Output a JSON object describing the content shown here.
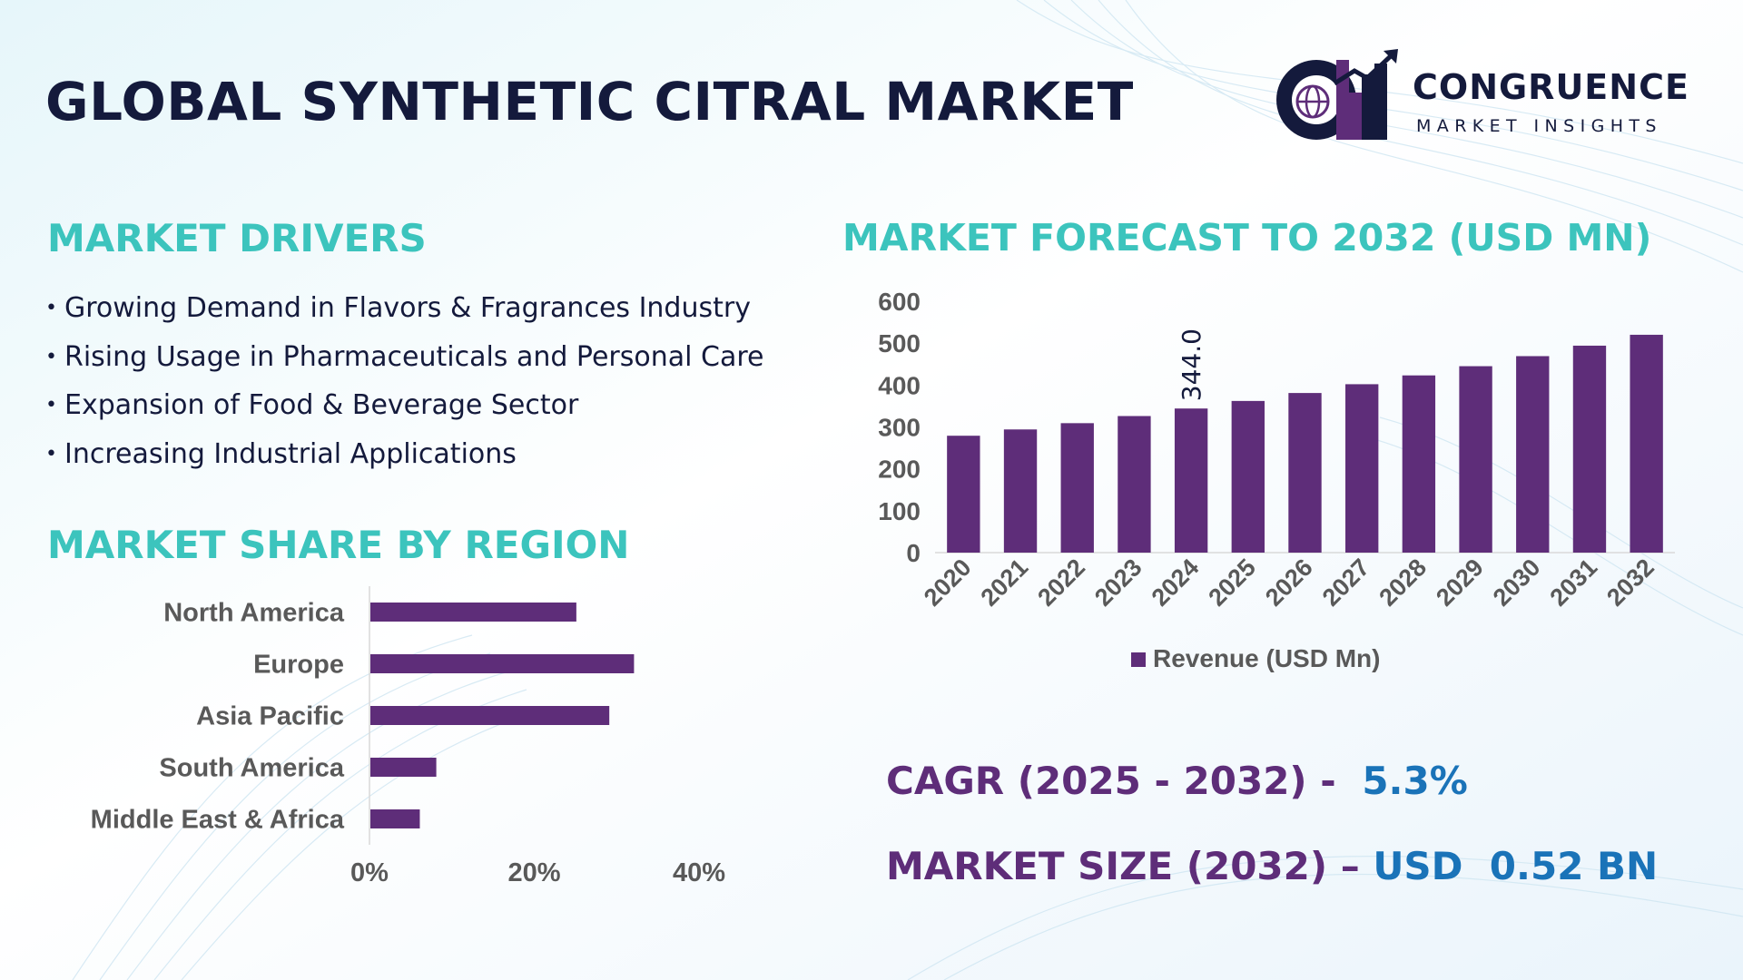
{
  "title": "GLOBAL SYNTHETIC CITRAL MARKET",
  "logo": {
    "name": "CONGRUENCE",
    "tagline": "MARKET INSIGHTS"
  },
  "drivers": {
    "title": "MARKET DRIVERS",
    "items": [
      "Growing Demand in Flavors & Fragrances Industry",
      "Rising Usage in Pharmaceuticals and Personal Care",
      "Expansion of Food & Beverage Sector",
      "Increasing Industrial Applications"
    ]
  },
  "region": {
    "title": "MARKET SHARE BY REGION"
  },
  "forecast": {
    "title": "MARKET FORECAST TO 2032 (USD MN)"
  },
  "stats": {
    "cagr_label": "CAGR (2025 - 2032) -",
    "cagr_value": "5.3%",
    "size_label": "MARKET SIZE (2032) –",
    "size_value": "USD  0.52 BN"
  },
  "colors": {
    "bar": "#5e2d79",
    "title_dark": "#141a3c",
    "section_teal": "#3cc4bd",
    "stat_purple": "#5e2d79",
    "stat_blue": "#1a73b8",
    "axis_text": "#595959"
  },
  "chart_data": [
    {
      "type": "bar",
      "orientation": "horizontal",
      "categories": [
        "North America",
        "Europe",
        "Asia Pacific",
        "South America",
        "Middle East & Africa"
      ],
      "values": [
        25,
        32,
        29,
        8,
        6
      ],
      "xlim": [
        0,
        40
      ],
      "xticks": [
        "0%",
        "20%",
        "40%"
      ],
      "xtick_values": [
        0,
        20,
        40
      ],
      "grid": false
    },
    {
      "type": "bar",
      "categories": [
        "2020",
        "2021",
        "2022",
        "2023",
        "2024",
        "2025",
        "2026",
        "2027",
        "2028",
        "2029",
        "2030",
        "2031",
        "2032"
      ],
      "series": [
        {
          "name": "Revenue (USD Mn)",
          "values": [
            279,
            294,
            309,
            326,
            344,
            362,
            381,
            402,
            423,
            445,
            469,
            494,
            520
          ]
        }
      ],
      "data_labels": [
        {
          "index": 4,
          "text": "344.0"
        }
      ],
      "ylim": [
        0,
        600
      ],
      "yticks": [
        0,
        100,
        200,
        300,
        400,
        500,
        600
      ],
      "legend": "bottom",
      "grid": false
    }
  ]
}
